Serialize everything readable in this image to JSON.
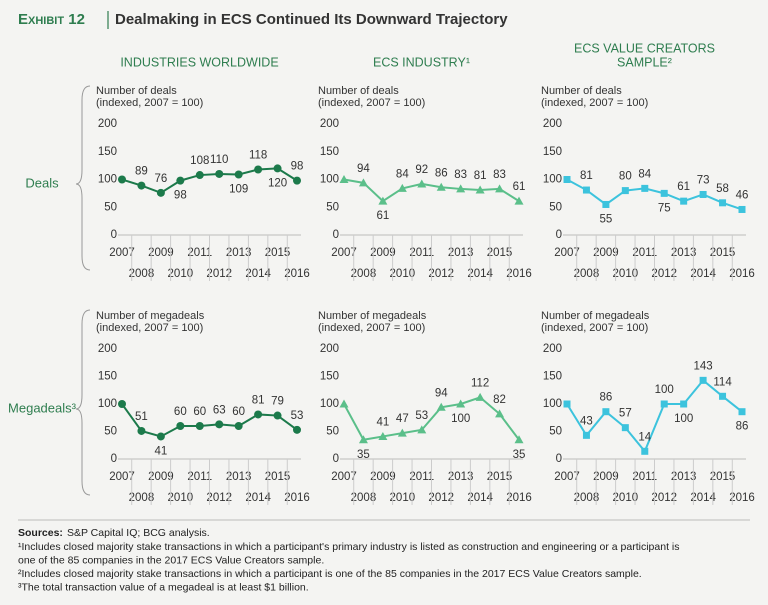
{
  "header": {
    "label": "Exhibit 12",
    "title": "Dealmaking in ECS Continued Its Downward Trajectory"
  },
  "column_titles": [
    [
      "INDUSTRIES WORLDWIDE"
    ],
    [
      "ECS INDUSTRY¹"
    ],
    [
      "ECS VALUE CREATORS",
      "SAMPLE²"
    ]
  ],
  "row_titles": [
    "Deals",
    "Megadeals³"
  ],
  "notes": {
    "sources": {
      "label": "Sources:",
      "text": "S&P Capital IQ; BCG analysis."
    },
    "footnotes": [
      [
        "¹Includes closed majority stake transactions in which a participant's primary industry is listed as construction and engineering or a participant is",
        "one of the 85 companies in the 2017 ECS Value Creators sample."
      ],
      [
        "²Includes closed majority stake transactions in which a participant is one of the 85 companies in the 2017 ECS Value Creators sample."
      ],
      [
        "³The total transaction value of a megadeal is at least $1 billion."
      ]
    ]
  },
  "chart_data": [
    {
      "type": "line",
      "marker": "circle",
      "color": "#1c7a4b",
      "ylabel": [
        "Number of deals",
        "(indexed, 2007 = 100)"
      ],
      "x": [
        2007,
        2008,
        2009,
        2010,
        2011,
        2012,
        2013,
        2014,
        2015,
        2016
      ],
      "xlim": [
        2007,
        2016
      ],
      "values": [
        100,
        89,
        76,
        98,
        108,
        110,
        109,
        118,
        120,
        98
      ],
      "ylim": [
        0,
        200
      ],
      "yticks": [
        0,
        50,
        100,
        150,
        200
      ]
    },
    {
      "type": "line",
      "marker": "triangle",
      "color": "#5bbf8a",
      "ylabel": [
        "Number of deals",
        "(indexed, 2007 = 100)"
      ],
      "x": [
        2007,
        2008,
        2009,
        2010,
        2011,
        2012,
        2013,
        2014,
        2015,
        2016
      ],
      "xlim": [
        2007,
        2016
      ],
      "values": [
        100,
        94,
        61,
        84,
        92,
        86,
        83,
        81,
        83,
        61
      ],
      "ylim": [
        0,
        200
      ],
      "yticks": [
        0,
        50,
        100,
        150,
        200
      ]
    },
    {
      "type": "line",
      "marker": "square",
      "color": "#3cc3dd",
      "ylabel": [
        "Number of deals",
        "(indexed, 2007 = 100)"
      ],
      "x": [
        2007,
        2008,
        2009,
        2010,
        2011,
        2012,
        2013,
        2014,
        2015,
        2016
      ],
      "xlim": [
        2007,
        2016
      ],
      "values": [
        100,
        81,
        55,
        80,
        84,
        75,
        61,
        73,
        58,
        46
      ],
      "ylim": [
        0,
        200
      ],
      "yticks": [
        0,
        50,
        100,
        150,
        200
      ]
    },
    {
      "type": "line",
      "marker": "circle",
      "color": "#1c7a4b",
      "ylabel": [
        "Number of megadeals",
        "(indexed, 2007 = 100)"
      ],
      "x": [
        2007,
        2008,
        2009,
        2010,
        2011,
        2012,
        2013,
        2014,
        2015,
        2016
      ],
      "xlim": [
        2007,
        2016
      ],
      "values": [
        100,
        51,
        41,
        60,
        60,
        63,
        60,
        81,
        79,
        53
      ],
      "ylim": [
        0,
        200
      ],
      "yticks": [
        0,
        50,
        100,
        150,
        200
      ]
    },
    {
      "type": "line",
      "marker": "triangle",
      "color": "#5bbf8a",
      "ylabel": [
        "Number of megadeals",
        "(indexed, 2007 = 100)"
      ],
      "x": [
        2007,
        2008,
        2009,
        2010,
        2011,
        2012,
        2013,
        2014,
        2015,
        2016
      ],
      "xlim": [
        2007,
        2016
      ],
      "values": [
        100,
        35,
        41,
        47,
        53,
        94,
        100,
        112,
        82,
        35
      ],
      "ylim": [
        0,
        200
      ],
      "yticks": [
        0,
        50,
        100,
        150,
        200
      ]
    },
    {
      "type": "line",
      "marker": "square",
      "color": "#3cc3dd",
      "ylabel": [
        "Number of megadeals",
        "(indexed, 2007 = 100)"
      ],
      "x": [
        2007,
        2008,
        2009,
        2010,
        2011,
        2012,
        2013,
        2014,
        2015,
        2016
      ],
      "xlim": [
        2007,
        2016
      ],
      "values": [
        100,
        43,
        86,
        57,
        14,
        100,
        100,
        143,
        114,
        86
      ],
      "ylim": [
        0,
        200
      ],
      "yticks": [
        0,
        50,
        100,
        150,
        200
      ]
    }
  ]
}
